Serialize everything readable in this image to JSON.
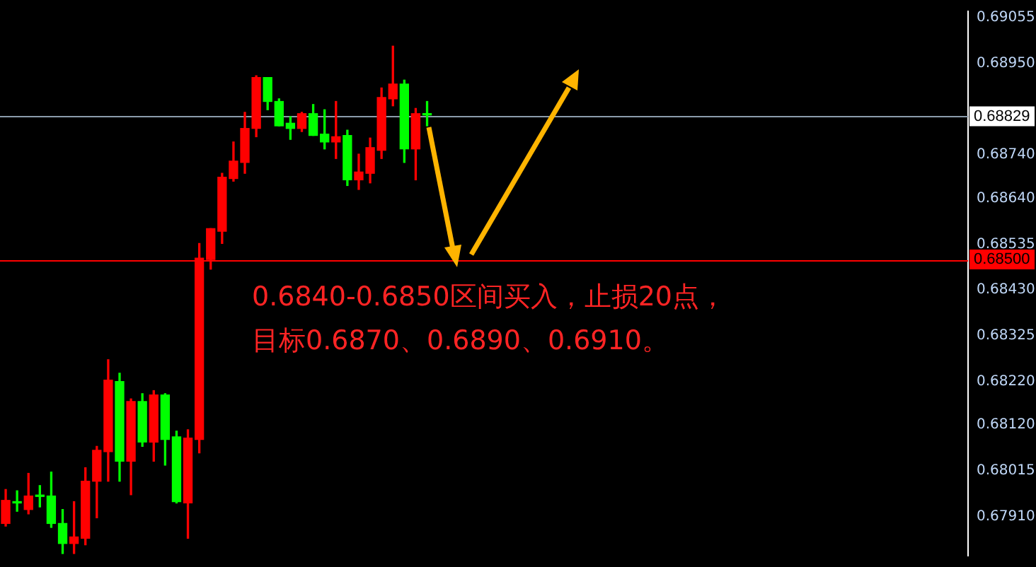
{
  "chart_data": {
    "type": "candlestick",
    "categories": [
      null,
      null,
      null,
      null,
      null,
      null,
      null,
      null,
      null,
      null,
      null,
      null,
      null,
      null,
      null,
      null,
      null,
      null,
      null,
      null,
      null,
      null,
      null,
      null,
      null,
      null,
      null,
      null,
      null,
      null,
      null,
      null,
      null,
      null,
      null,
      null,
      null,
      null,
      null,
      null,
      null,
      null,
      null,
      null,
      null,
      null,
      null,
      null,
      null,
      null,
      null,
      null,
      null,
      null,
      null,
      null,
      null,
      null,
      null,
      null,
      null,
      null,
      null,
      null,
      null,
      null,
      null,
      null,
      null,
      null,
      null,
      null,
      null,
      null,
      null,
      null,
      null,
      null,
      null,
      null,
      null,
      null,
      null,
      null,
      null
    ],
    "ohlc": [
      [
        0.67894,
        0.67972,
        0.67888,
        0.67947
      ],
      [
        0.67944,
        0.67969,
        0.67922,
        0.67941
      ],
      [
        0.67926,
        0.68009,
        0.67916,
        0.67957
      ],
      [
        0.67958,
        0.67981,
        0.67932,
        0.67956
      ],
      [
        0.67957,
        0.68012,
        0.67885,
        0.67894
      ],
      [
        0.67894,
        0.67926,
        0.67825,
        0.67848
      ],
      [
        0.67848,
        0.67944,
        0.67825,
        0.67863
      ],
      [
        0.6786,
        0.68022,
        0.67845,
        0.67991
      ],
      [
        0.67991,
        0.68071,
        0.67907,
        0.68062
      ],
      [
        0.68059,
        0.6827,
        0.67991,
        0.68223
      ],
      [
        0.6822,
        0.68239,
        0.67991,
        0.68037
      ],
      [
        0.68037,
        0.6818,
        0.6796,
        0.68174
      ],
      [
        0.68174,
        0.68192,
        0.68071,
        0.68081
      ],
      [
        0.68081,
        0.68199,
        0.68037,
        0.68189
      ],
      [
        0.68189,
        0.68192,
        0.68028,
        0.68087
      ],
      [
        0.68093,
        0.68106,
        0.67941,
        0.67944
      ],
      [
        0.67941,
        0.68109,
        0.6786,
        0.6809
      ],
      [
        0.68087,
        0.68537,
        0.68056,
        0.68503
      ],
      [
        0.685,
        0.68571,
        0.68478,
        0.68571
      ],
      [
        0.68565,
        0.68698,
        0.68537,
        0.68689
      ],
      [
        0.68686,
        0.6877,
        0.6868,
        0.68726
      ],
      [
        0.68723,
        0.68838,
        0.68698,
        0.68801
      ],
      [
        0.68801,
        0.68922,
        0.68782,
        0.68918
      ],
      [
        0.68918,
        0.68918,
        0.68844,
        0.68863
      ],
      [
        0.68863,
        0.68869,
        0.68807,
        0.68807
      ],
      [
        0.68813,
        0.68828,
        0.68776,
        0.68801
      ],
      [
        0.68801,
        0.68838,
        0.68794,
        0.68835
      ],
      [
        0.68835,
        0.68856,
        0.68785,
        0.68785
      ],
      [
        0.68788,
        0.68844,
        0.68754,
        0.6877
      ],
      [
        0.6877,
        0.68863,
        0.68732,
        0.68782
      ],
      [
        0.68785,
        0.68797,
        0.6867,
        0.68683
      ],
      [
        0.68683,
        0.68742,
        0.68661,
        0.68701
      ],
      [
        0.68698,
        0.68779,
        0.68676,
        0.68757
      ],
      [
        0.68751,
        0.68894,
        0.68732,
        0.68872
      ],
      [
        0.68869,
        0.6899,
        0.68853,
        0.68903
      ],
      [
        0.68903,
        0.68912,
        0.68723,
        0.68754
      ],
      [
        0.68754,
        0.68847,
        0.68683,
        0.68835
      ],
      [
        0.68835,
        0.68863,
        0.68807,
        0.68832
      ],
      null,
      null,
      null,
      null,
      null,
      null,
      null,
      null,
      null,
      null,
      null,
      null,
      null,
      null,
      null,
      null,
      null,
      null,
      null,
      null,
      null,
      null,
      null,
      null,
      null,
      null,
      null,
      null,
      null,
      null,
      null,
      null,
      null,
      null,
      null,
      null,
      null,
      null,
      null,
      null,
      null,
      null,
      null,
      null,
      null,
      null,
      null
    ],
    "colors": [
      "#ff0000",
      "#00ff00",
      "#ff0000",
      "#00ff00",
      "#00ff00",
      "#00ff00",
      "#ff0000",
      "#ff0000",
      "#ff0000",
      "#ff0000",
      "#00ff00",
      "#ff0000",
      "#00ff00",
      "#ff0000",
      "#00ff00",
      "#00ff00",
      "#ff0000",
      "#ff0000",
      "#ff0000",
      "#ff0000",
      "#ff0000",
      "#ff0000",
      "#ff0000",
      "#00ff00",
      "#00ff00",
      "#00ff00",
      "#ff0000",
      "#00ff00",
      "#00ff00",
      "#ff0000",
      "#00ff00",
      "#ff0000",
      "#ff0000",
      "#ff0000",
      "#ff0000",
      "#00ff00",
      "#ff0000",
      "#00ff00",
      null,
      null,
      null,
      null,
      null,
      null,
      null,
      null,
      null,
      null,
      null,
      null,
      null,
      null,
      null,
      null,
      null,
      null,
      null,
      null,
      null,
      null,
      null,
      null,
      null,
      null,
      null,
      null,
      null,
      null,
      null,
      null,
      null,
      null,
      null,
      null,
      null,
      null,
      null,
      null,
      null,
      null,
      null,
      null,
      null,
      null,
      null
    ],
    "ylim": [
      0.6782,
      0.6907
    ],
    "yticks": [
      0.69055,
      {
        "value": 0.6895,
        "label": "0.68950"
      },
      {
        "value": 0.6874,
        "label": "0.68740"
      },
      {
        "value": 0.6864,
        "label": "0.68640"
      },
      0.68535,
      {
        "value": 0.6843,
        "label": "0.68430"
      },
      0.68325,
      {
        "value": 0.6822,
        "label": "0.68220"
      },
      {
        "value": 0.6812,
        "label": "0.68120"
      },
      0.68015,
      {
        "value": 0.6791,
        "label": "0.67910"
      }
    ],
    "tick_labels": "y",
    "grid": false,
    "ref_lines": [
      {
        "axis": "y",
        "value": 0.68829,
        "label": "0.68829",
        "color": "#8c9cac"
      },
      {
        "axis": "y",
        "value": 0.685,
        "label": "0.68500",
        "color": "#ff0000"
      }
    ],
    "annotations": [
      "0.6840-0.6850区间买入，止损20点，",
      "目标0.6870、0.6890、0.6910。"
    ]
  }
}
